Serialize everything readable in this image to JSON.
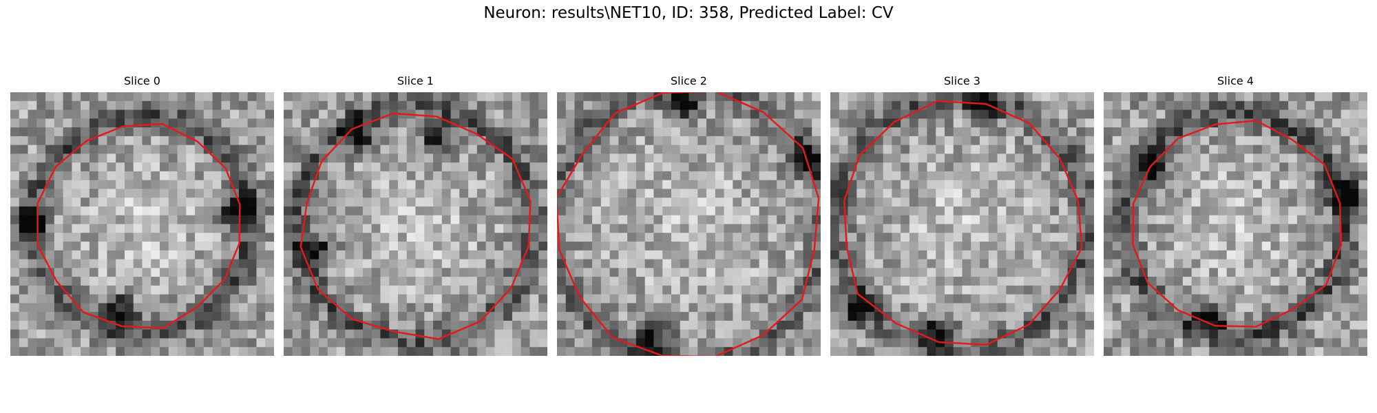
{
  "figure": {
    "title": "Neuron: results\\NET10, ID: 358, Predicted Label: CV"
  },
  "panels": [
    {
      "title": "Slice 0",
      "seed": 11,
      "blob": [
        0.36,
        0.3
      ],
      "ring": [
        0.41,
        0.3
      ],
      "dark": [
        [
          0.42,
          0.83
        ],
        [
          0.08,
          0.5
        ],
        [
          0.86,
          0.45
        ]
      ]
    },
    {
      "title": "Slice 1",
      "seed": 23,
      "blob": [
        0.39,
        0.28
      ],
      "ring": [
        0.45,
        0.28
      ],
      "dark": [
        [
          0.28,
          0.16
        ],
        [
          0.58,
          0.17
        ],
        [
          0.12,
          0.6
        ]
      ]
    },
    {
      "title": "Slice 2",
      "seed": 37,
      "blob": [
        0.46,
        0.24
      ],
      "ring": [
        0.52,
        0.24
      ],
      "dark": [
        [
          0.48,
          0.05
        ],
        [
          0.37,
          0.92
        ],
        [
          0.95,
          0.25
        ]
      ]
    },
    {
      "title": "Slice 3",
      "seed": 51,
      "blob": [
        0.42,
        0.26
      ],
      "ring": [
        0.48,
        0.26
      ],
      "dark": [
        [
          0.4,
          0.92
        ],
        [
          0.58,
          0.06
        ],
        [
          0.1,
          0.82
        ]
      ]
    },
    {
      "title": "Slice 4",
      "seed": 67,
      "blob": [
        0.36,
        0.32
      ],
      "ring": [
        0.42,
        0.32
      ],
      "dark": [
        [
          0.4,
          0.85
        ],
        [
          0.18,
          0.28
        ],
        [
          0.92,
          0.4
        ]
      ]
    }
  ],
  "colors": {
    "contour": "#e31a1c",
    "background": "#ffffff"
  }
}
